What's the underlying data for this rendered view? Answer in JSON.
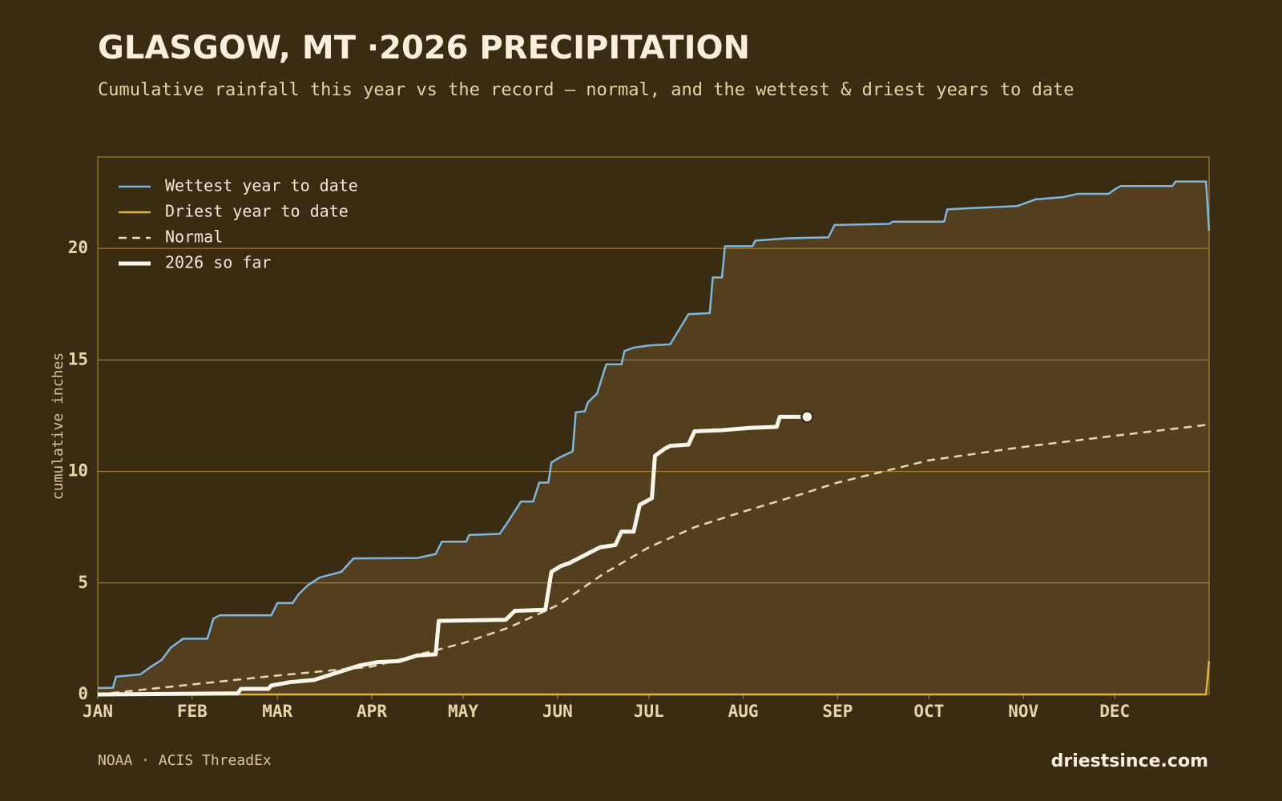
{
  "chart_data": {
    "type": "line",
    "title": "GLASGOW, MT ·2026 PRECIPITATION",
    "subtitle": "Cumulative rainfall this year vs the record — normal, and the wettest & driest years to date",
    "y_label": "cumulative inches",
    "source": "NOAA · ACIS ThreadEx",
    "brand": "driestsince.com",
    "xlim": [
      0,
      365
    ],
    "xticks": [
      {
        "value": 0,
        "label": "JAN"
      },
      {
        "value": 31,
        "label": "FEB"
      },
      {
        "value": 59,
        "label": "MAR"
      },
      {
        "value": 90,
        "label": "APR"
      },
      {
        "value": 120,
        "label": "MAY"
      },
      {
        "value": 151,
        "label": "JUN"
      },
      {
        "value": 181,
        "label": "JUL"
      },
      {
        "value": 212,
        "label": "AUG"
      },
      {
        "value": 243,
        "label": "SEP"
      },
      {
        "value": 273,
        "label": "OCT"
      },
      {
        "value": 304,
        "label": "NOV"
      },
      {
        "value": 334,
        "label": "DEC"
      }
    ],
    "ylim": [
      0,
      24.1
    ],
    "yticks": [
      0,
      5,
      10,
      15,
      20
    ],
    "grid": true,
    "legend": "top-left",
    "band_fill": "#533f1e",
    "series": [
      {
        "name": "Wettest year to date",
        "color": "#7db7e0",
        "x": [
          0,
          5,
          6,
          10,
          14,
          17,
          21,
          24,
          28,
          36,
          38,
          40,
          57,
          59,
          64,
          66,
          69,
          73,
          80,
          84,
          105,
          111,
          113,
          121,
          122,
          132,
          135,
          139,
          143,
          145,
          148,
          149,
          152,
          156,
          157,
          160,
          161,
          164,
          167,
          172,
          173,
          176,
          181,
          188,
          194,
          201,
          202,
          205,
          206,
          215,
          216,
          226,
          240,
          242,
          260,
          261,
          278,
          279,
          286,
          302,
          308,
          317,
          322,
          332,
          334,
          336,
          353,
          354,
          364,
          365
        ],
        "values": [
          0.29,
          0.3,
          0.8,
          0.85,
          0.9,
          1.2,
          1.55,
          2.1,
          2.5,
          2.5,
          3.4,
          3.55,
          3.55,
          4.1,
          4.1,
          4.5,
          4.9,
          5.25,
          5.5,
          6.1,
          6.12,
          6.3,
          6.85,
          6.85,
          7.15,
          7.2,
          7.8,
          8.65,
          8.65,
          9.5,
          9.5,
          10.4,
          10.65,
          10.9,
          12.65,
          12.7,
          13.1,
          13.5,
          14.8,
          14.8,
          15.4,
          15.55,
          15.65,
          15.7,
          17.05,
          17.1,
          18.7,
          18.7,
          20.1,
          20.1,
          20.35,
          20.45,
          20.5,
          21.05,
          21.1,
          21.2,
          21.2,
          21.75,
          21.8,
          21.9,
          22.2,
          22.3,
          22.45,
          22.45,
          22.65,
          22.8,
          22.8,
          23.0,
          23.0,
          20.8
        ]
      },
      {
        "name": "Driest year to date",
        "color": "#e3b244",
        "x": [
          0,
          364,
          365
        ],
        "values": [
          0,
          0,
          1.5
        ]
      },
      {
        "name": "Normal",
        "color": "#e8d8b0",
        "dashed": true,
        "x": [
          0,
          31,
          59,
          90,
          120,
          135,
          151,
          166,
          181,
          196,
          212,
          228,
          243,
          273,
          304,
          334,
          365
        ],
        "values": [
          0,
          0.45,
          0.85,
          1.25,
          2.3,
          3.0,
          4.0,
          5.4,
          6.6,
          7.5,
          8.2,
          8.85,
          9.5,
          10.5,
          11.1,
          11.6,
          12.1
        ]
      },
      {
        "name": "2026 so far",
        "color": "#fbf6ec",
        "width": 5,
        "x": [
          0,
          46,
          47,
          56,
          57,
          63,
          71,
          78,
          86,
          92,
          99,
          105,
          111,
          112,
          134,
          137,
          147,
          149,
          152,
          155,
          160,
          165,
          170,
          172,
          176,
          178,
          182,
          183,
          186,
          188,
          194,
          196,
          205,
          214,
          223,
          224,
          233
        ],
        "values": [
          0,
          0.05,
          0.25,
          0.25,
          0.4,
          0.55,
          0.65,
          0.95,
          1.3,
          1.45,
          1.5,
          1.75,
          1.8,
          3.3,
          3.35,
          3.75,
          3.8,
          5.5,
          5.75,
          5.9,
          6.25,
          6.6,
          6.7,
          7.3,
          7.3,
          8.5,
          8.8,
          10.7,
          11.0,
          11.15,
          11.2,
          11.8,
          11.85,
          11.95,
          12.0,
          12.45,
          12.45
        ]
      }
    ]
  }
}
